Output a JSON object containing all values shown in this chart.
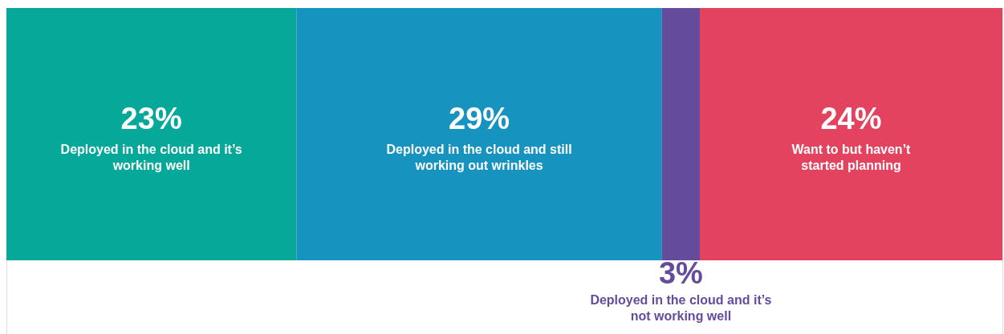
{
  "chart_data": {
    "type": "bar",
    "orientation": "horizontal",
    "stacked": true,
    "categories": [
      null
    ],
    "series": [
      {
        "name": "Deployed in the cloud and it’s\nworking well",
        "color": "#05a899",
        "values": [
          23
        ],
        "value_labels": [
          "23%"
        ]
      },
      {
        "name": "Deployed in the cloud and still\nworking out wrinkles",
        "color": "#1793bf",
        "values": [
          29
        ],
        "value_labels": [
          "29%"
        ]
      },
      {
        "name": "Deployed in the cloud and it’s\nnot working well",
        "color": "#654b9c",
        "values": [
          3
        ],
        "value_labels": [
          "3%"
        ]
      },
      {
        "name": "Want to but haven’t\nstarted planning",
        "color": "#e4435f",
        "values": [
          24
        ],
        "value_labels": [
          "24%"
        ]
      }
    ],
    "tick_labels": false
  }
}
